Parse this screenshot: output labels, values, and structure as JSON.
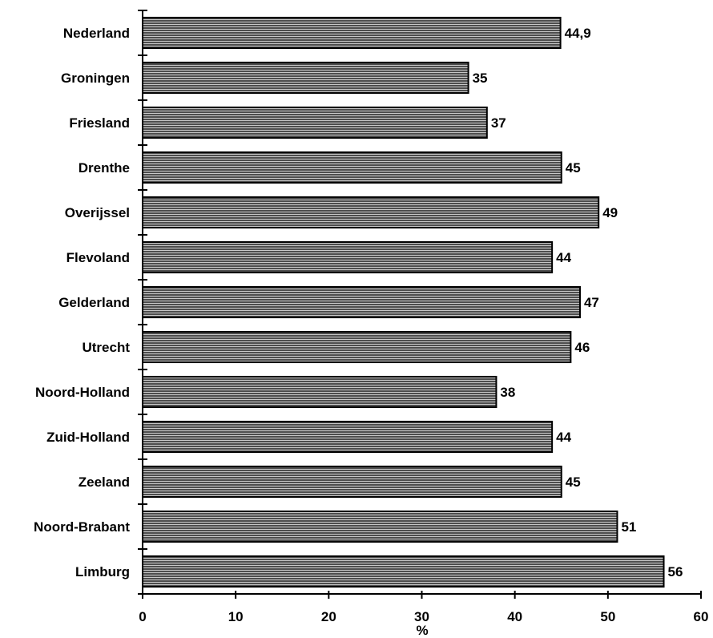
{
  "chart_data": {
    "type": "bar",
    "orientation": "horizontal",
    "categories": [
      "Nederland",
      "Groningen",
      "Friesland",
      "Drenthe",
      "Overijssel",
      "Flevoland",
      "Gelderland",
      "Utrecht",
      "Noord-Holland",
      "Zuid-Holland",
      "Zeeland",
      "Noord-Brabant",
      "Limburg"
    ],
    "values": [
      44.9,
      35,
      37,
      45,
      49,
      44,
      47,
      46,
      38,
      44,
      45,
      51,
      56
    ],
    "value_labels": [
      "44,9",
      "35",
      "37",
      "45",
      "49",
      "44",
      "47",
      "46",
      "38",
      "44",
      "45",
      "51",
      "56"
    ],
    "xlabel": "%",
    "ylabel": "",
    "xlim": [
      0,
      60
    ],
    "xticks": [
      0,
      10,
      20,
      30,
      40,
      50,
      60
    ],
    "xtick_labels": [
      "0",
      "10",
      "20",
      "30",
      "40",
      "50",
      "60"
    ],
    "grid": false,
    "colors": {
      "bar_fill": "#4d4d4d",
      "bar_stripe": "#c8c8c8",
      "outline": "#000000"
    }
  }
}
